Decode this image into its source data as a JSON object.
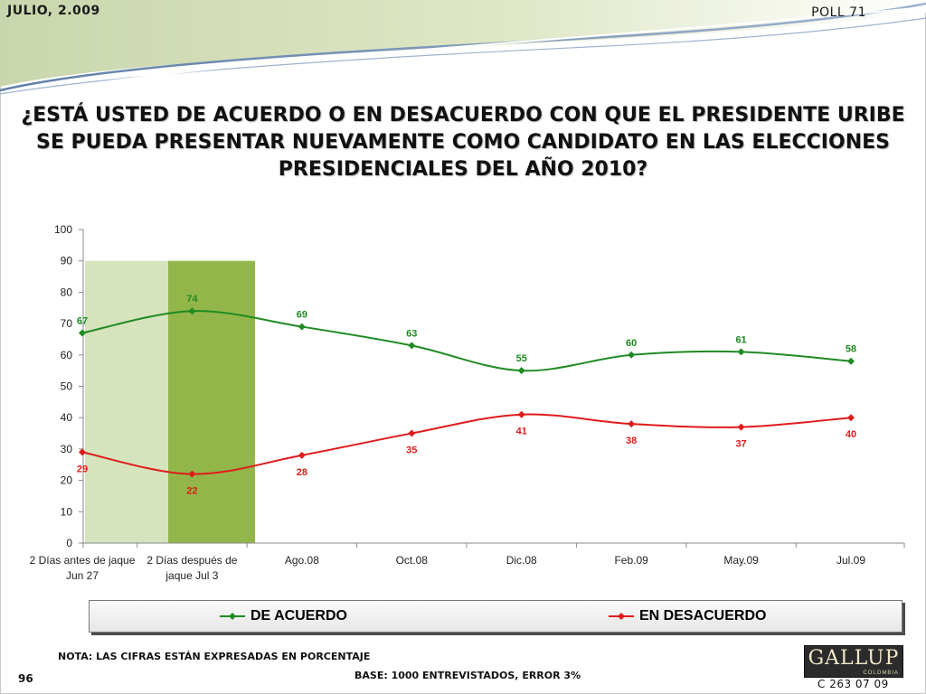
{
  "header": {
    "date": "JULIO, 2.009",
    "poll": "POLL 71"
  },
  "question": "¿ESTÁ USTED DE ACUERDO O EN DESACUERDO CON QUE EL PRESIDENTE URIBE SE PUEDA PRESENTAR NUEVAMENTE COMO CANDIDATO EN LAS ELECCIONES PRESIDENCIALES DEL AÑO 2010?",
  "colors": {
    "agree": "#1f8b22",
    "disagree": "#e01b1b",
    "highlight_light": "#d5e4bd",
    "highlight_dark": "#93b64a"
  },
  "chart_data": {
    "type": "line",
    "categories": [
      [
        "2 Días antes de jaque",
        "Jun 27"
      ],
      [
        "2 Días después de",
        "jaque Jul 3"
      ],
      [
        "Ago.08"
      ],
      [
        "Oct.08"
      ],
      [
        "Dic.08"
      ],
      [
        "Feb.09"
      ],
      [
        "May.09"
      ],
      [
        "Jul.09"
      ]
    ],
    "series": [
      {
        "name": "DE ACUERDO",
        "values": [
          67,
          74,
          69,
          63,
          55,
          60,
          61,
          58
        ]
      },
      {
        "name": "EN DESACUERDO",
        "values": [
          29,
          22,
          28,
          35,
          41,
          38,
          37,
          40
        ]
      }
    ],
    "ylim": [
      0,
      100
    ],
    "yticks": [
      0,
      10,
      20,
      30,
      40,
      50,
      60,
      70,
      80,
      90,
      100
    ],
    "highlight": [
      {
        "category_index": 0,
        "top_value": 90,
        "shade": "light"
      },
      {
        "category_index": 1,
        "top_value": 90,
        "shade": "dark"
      }
    ],
    "grid": false,
    "legend": "bottom",
    "smooth": true
  },
  "legend": {
    "agree": "DE ACUERDO",
    "disagree": "EN DESACUERDO"
  },
  "footer": {
    "note": "NOTA: LAS CIFRAS ESTÁN EXPRESADAS EN PORCENTAJE",
    "base": "BASE: 1000 ENTREVISTADOS, ERROR 3%",
    "page": "96",
    "code": "C 263 07 09"
  },
  "logo": {
    "name": "GALLUP",
    "sub": "COLOMBIA"
  }
}
